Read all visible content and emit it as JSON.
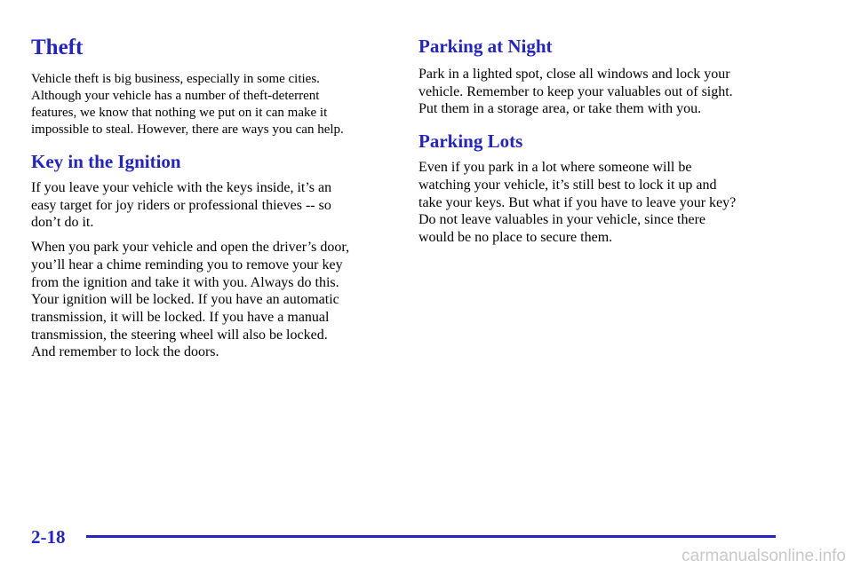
{
  "left": {
    "sections": [
      {
        "heading": "Theft",
        "paragraphs": [
          [
            "Vehicle theft is big business, especially in some cities.",
            "Although your vehicle has a number of theft-deterrent",
            "features, we know that nothing we put on it can make it",
            "impossible to steal. However, there are ways you can help."
          ]
        ]
      },
      {
        "heading": "Key in the Ignition",
        "paragraphs": [
          [
            "If you leave your vehicle with the keys inside, it’s an",
            "easy target for joy riders or professional thieves -- so",
            "don’t do it."
          ],
          [
            "When you park your vehicle and open the driver’s door,",
            "you’ll hear a chime reminding you to remove your key",
            "from the ignition and take it with you. Always do this.",
            "Your ignition will be locked. If you have an automatic",
            "transmission, it will be locked. If you have a manual",
            "transmission, the steering wheel will also be locked.",
            "And remember to lock the doors."
          ]
        ]
      }
    ]
  },
  "right": {
    "sections": [
      {
        "heading": "Parking at Night",
        "paragraphs": [
          [
            "Park in a lighted spot, close all windows and lock your",
            "vehicle. Remember to keep your valuables out of sight.",
            "Put them in a storage area, or take them with you."
          ]
        ]
      },
      {
        "heading": "Parking Lots",
        "paragraphs": [
          [
            "Even if you park in a lot where someone will be",
            "watching your vehicle, it’s still best to lock it up and",
            "take your keys. But what if you have to leave your key?",
            "Do not leave valuables in your vehicle, since there",
            "would be no place to secure them."
          ]
        ]
      }
    ]
  },
  "footer": {
    "page_number": "2-18",
    "watermark": "carmanualsonline.info"
  }
}
